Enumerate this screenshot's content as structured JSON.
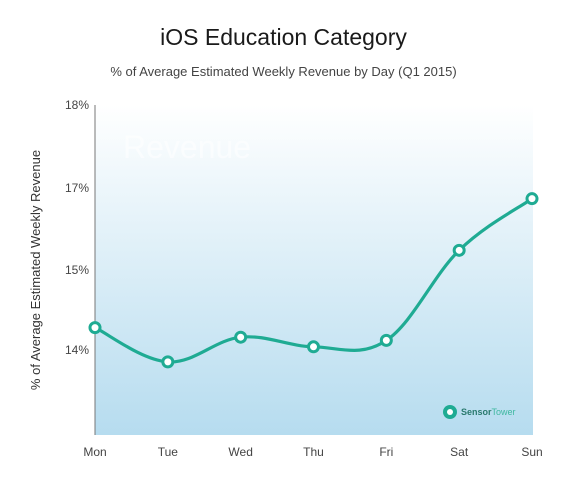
{
  "chart_data": {
    "type": "line",
    "title": "iOS Education Category",
    "subtitle": "% of Average Estimated Weekly Revenue by Day (Q1 2015)",
    "xlabel": "",
    "ylabel": "% of Average Estimated Weekly Revenue",
    "categories": [
      "Mon",
      "Tue",
      "Wed",
      "Thu",
      "Fri",
      "Sat",
      "Sun"
    ],
    "series": [
      {
        "values": [
          14.28,
          13.86,
          14.16,
          14.04,
          14.12,
          15.48,
          16.74
        ]
      }
    ],
    "yticks": [
      {
        "label": "14%",
        "value": 14
      },
      {
        "label": "15%",
        "value": 15
      },
      {
        "label": "17%",
        "value": 17
      },
      {
        "label": "18%",
        "value": 18
      }
    ],
    "ylim": [
      13,
      18
    ],
    "grid": false,
    "watermark": "Revenue",
    "brand": {
      "name_a": "Sensor",
      "name_b": "Tower"
    },
    "colors": {
      "line": "#1fab93",
      "marker_fill": "#ffffff",
      "plot_bg_top": "#ffffff",
      "plot_bg_bottom": "#b6dcef",
      "axis": "#777777"
    }
  }
}
